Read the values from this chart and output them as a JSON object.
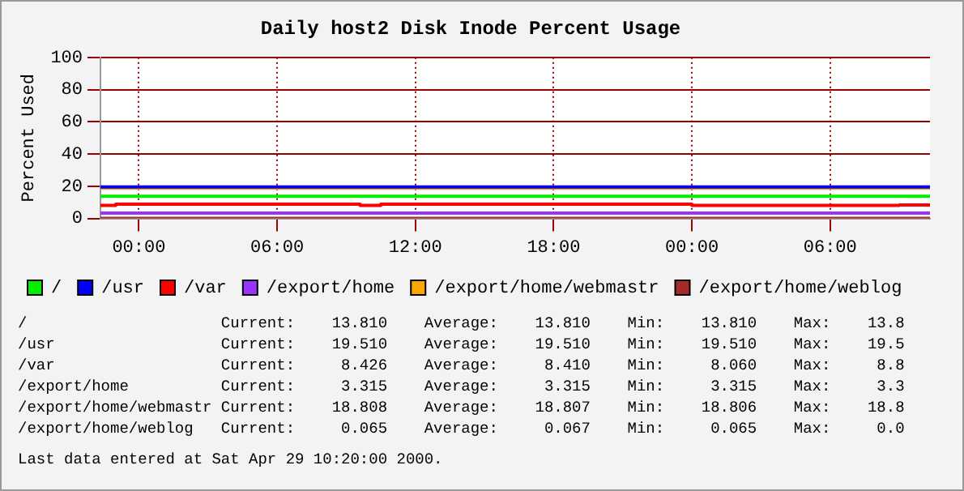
{
  "chart_data": {
    "type": "line",
    "title": "Daily host2 Disk Inode Percent Usage",
    "ylabel": "Percent Used",
    "xlim": [
      "2000-04-27T22:20",
      "2000-04-29T10:20"
    ],
    "xticks": [
      {
        "value": "2000-04-28T00:00",
        "label": "00:00"
      },
      {
        "value": "2000-04-28T06:00",
        "label": "06:00"
      },
      {
        "value": "2000-04-28T12:00",
        "label": "12:00"
      },
      {
        "value": "2000-04-28T18:00",
        "label": "18:00"
      },
      {
        "value": "2000-04-29T00:00",
        "label": "00:00"
      },
      {
        "value": "2000-04-29T06:00",
        "label": "06:00"
      }
    ],
    "ylim": [
      0,
      100
    ],
    "yticks": [
      0,
      20,
      40,
      60,
      80,
      100
    ],
    "grid": true,
    "legend": "bottom",
    "series": [
      {
        "name": "/",
        "color": "#00ee00",
        "x": [
          "2000-04-27T22:20",
          "2000-04-29T10:20"
        ],
        "values": [
          13.8,
          13.8
        ]
      },
      {
        "name": "/usr",
        "color": "#0000ff",
        "x": [
          "2000-04-27T22:20",
          "2000-04-29T10:20"
        ],
        "values": [
          19.5,
          19.5
        ]
      },
      {
        "name": "/var",
        "color": "#ff0000",
        "x": [
          "2000-04-27T22:20",
          "2000-04-27T23:00",
          "2000-04-27T23:00",
          "2000-04-28T09:36",
          "2000-04-28T09:36",
          "2000-04-28T10:30",
          "2000-04-28T10:30",
          "2000-04-29T00:00",
          "2000-04-29T00:00",
          "2000-04-29T09:00",
          "2000-04-29T09:00",
          "2000-04-29T10:20"
        ],
        "values": [
          8.1,
          8.1,
          8.8,
          8.8,
          8.1,
          8.1,
          8.8,
          8.8,
          8.1,
          8.1,
          8.4,
          8.4
        ]
      },
      {
        "name": "/export/home",
        "color": "#9933ff",
        "x": [
          "2000-04-27T22:20",
          "2000-04-29T10:20"
        ],
        "values": [
          3.3,
          3.3
        ]
      },
      {
        "name": "/export/home/webmastr",
        "color": "#ffa500",
        "x": [
          "2000-04-27T22:20",
          "2000-04-29T10:20"
        ],
        "values": [
          18.8,
          18.8
        ]
      },
      {
        "name": "/export/home/weblog",
        "color": "#a52a2a",
        "x": [
          "2000-04-27T22:20",
          "2000-04-29T10:20"
        ],
        "values": [
          0.1,
          0.1
        ]
      }
    ],
    "annotations": [
      "/                     Current:    13.810    Average:    13.810    Min:    13.810    Max:    13.8",
      "/usr                  Current:    19.510    Average:    19.510    Min:    19.510    Max:    19.5",
      "/var                  Current:     8.426    Average:     8.410    Min:     8.060    Max:     8.8",
      "/export/home          Current:     3.315    Average:     3.315    Min:     3.315    Max:     3.3",
      "/export/home/webmastr Current:    18.808    Average:    18.807    Min:    18.806    Max:    18.8",
      "/export/home/weblog   Current:     0.065    Average:     0.067    Min:     0.065    Max:     0.0",
      "Last data entered at Sat Apr 29 10:20:00 2000."
    ]
  }
}
